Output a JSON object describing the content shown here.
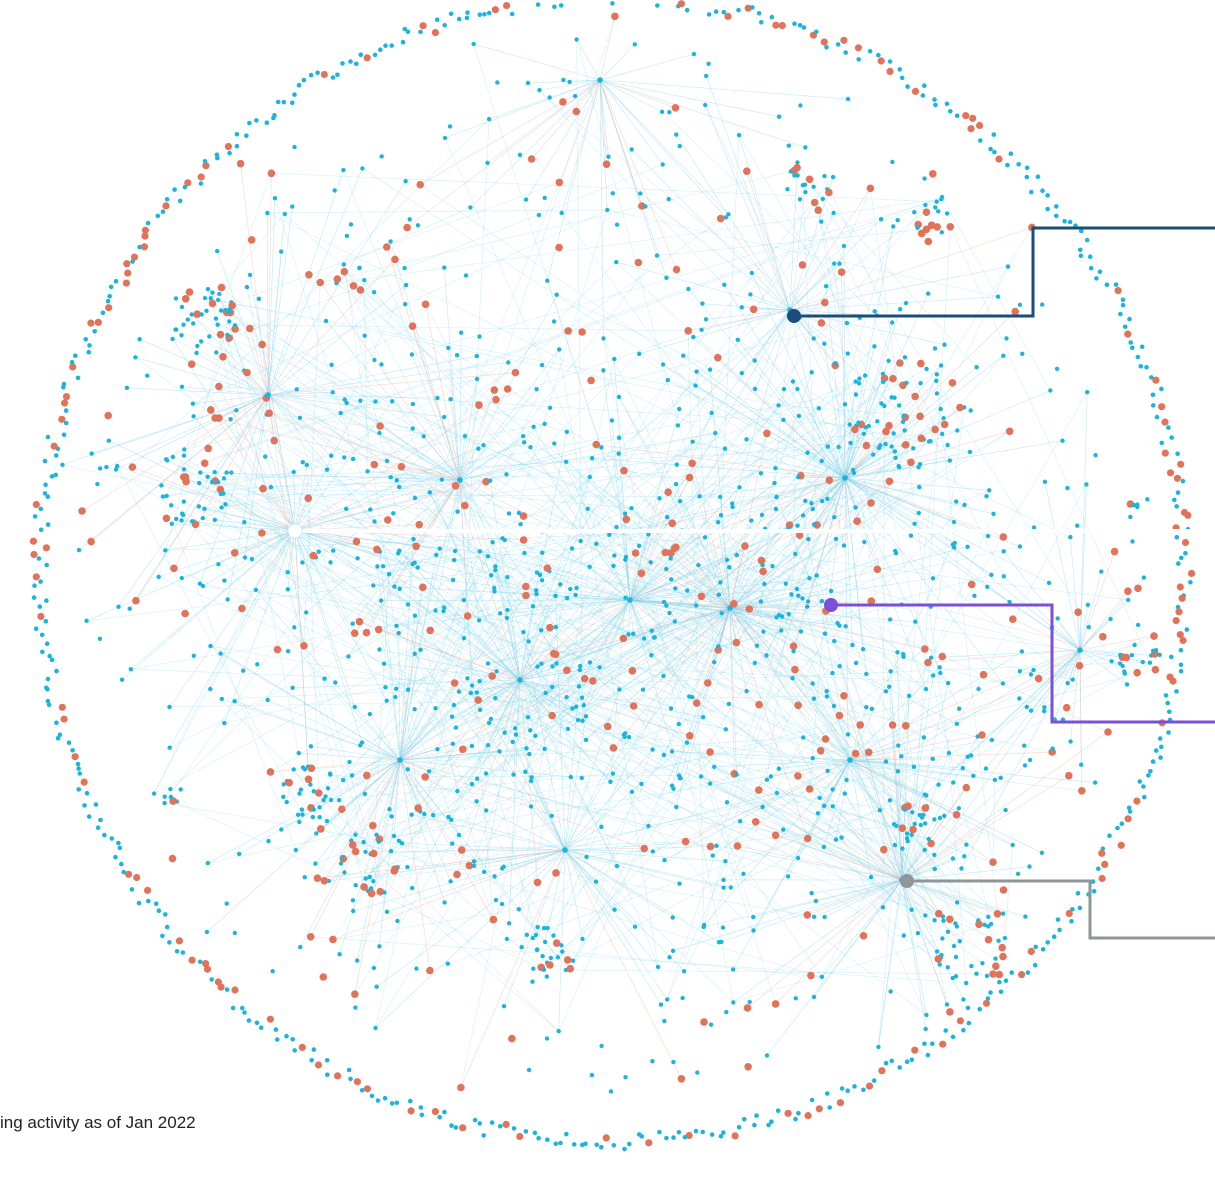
{
  "caption": "ing activity as of Jan 2022",
  "colors": {
    "node_primary": "#1bb4dd",
    "node_secondary": "#e0735a",
    "edge_primary": "#7fd4ee",
    "edge_secondary": "#f2b3a5",
    "callout_1": "#1a4e7a",
    "callout_2": "#7b4fd6",
    "callout_3": "#8f9699",
    "highlight_node": "#ffffff"
  },
  "callouts": [
    {
      "id": "callout-dark-blue",
      "color_key": "callout_1"
    },
    {
      "id": "callout-purple",
      "color_key": "callout_2"
    },
    {
      "id": "callout-grey",
      "color_key": "callout_3"
    }
  ]
}
